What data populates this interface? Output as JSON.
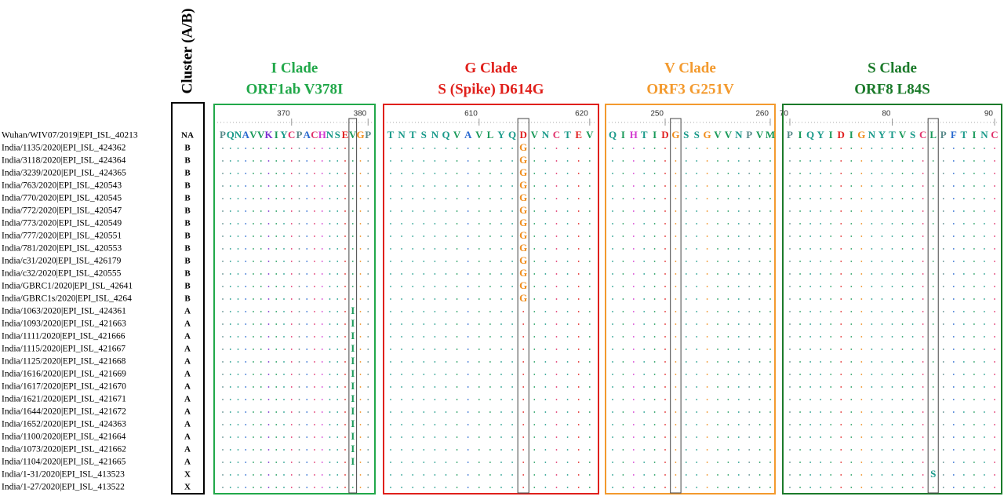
{
  "cluster_header": "Cluster (A/B)",
  "sequences": [
    {
      "name": "Wuhan/WIV07/2019|EPI_ISL_40213",
      "cluster": "NA"
    },
    {
      "name": "India/1135/2020|EPI_ISL_424362",
      "cluster": "B"
    },
    {
      "name": "India/3118/2020|EPI_ISL_424364",
      "cluster": "B"
    },
    {
      "name": "India/3239/2020|EPI_ISL_424365",
      "cluster": "B"
    },
    {
      "name": "India/763/2020|EPI_ISL_420543",
      "cluster": "B"
    },
    {
      "name": "India/770/2020|EPI_ISL_420545",
      "cluster": "B"
    },
    {
      "name": "India/772/2020|EPI_ISL_420547",
      "cluster": "B"
    },
    {
      "name": "India/773/2020|EPI_ISL_420549",
      "cluster": "B"
    },
    {
      "name": "India/777/2020|EPI_ISL_420551",
      "cluster": "B"
    },
    {
      "name": "India/781/2020|EPI_ISL_420553",
      "cluster": "B"
    },
    {
      "name": "India/c31/2020|EPI_ISL_426179",
      "cluster": "B"
    },
    {
      "name": "India/c32/2020|EPI_ISL_420555",
      "cluster": "B"
    },
    {
      "name": "India/GBRC1/2020|EPI_ISL_42641",
      "cluster": "B"
    },
    {
      "name": "India/GBRC1s/2020|EPI_ISL_4264",
      "cluster": "B"
    },
    {
      "name": "India/1063/2020|EPI_ISL_424361",
      "cluster": "A"
    },
    {
      "name": "India/1093/2020|EPI_ISL_421663",
      "cluster": "A"
    },
    {
      "name": "India/1111/2020|EPI_ISL_421666",
      "cluster": "A"
    },
    {
      "name": "India/1115/2020|EPI_ISL_421667",
      "cluster": "A"
    },
    {
      "name": "India/1125/2020|EPI_ISL_421668",
      "cluster": "A"
    },
    {
      "name": "India/1616/2020|EPI_ISL_421669",
      "cluster": "A"
    },
    {
      "name": "India/1617/2020|EPI_ISL_421670",
      "cluster": "A"
    },
    {
      "name": "India/1621/2020|EPI_ISL_421671",
      "cluster": "A"
    },
    {
      "name": "India/1644/2020|EPI_ISL_421672",
      "cluster": "A"
    },
    {
      "name": "India/1652/2020|EPI_ISL_424363",
      "cluster": "A"
    },
    {
      "name": "India/1100/2020|EPI_ISL_421664",
      "cluster": "A"
    },
    {
      "name": "India/1073/2020|EPI_ISL_421662",
      "cluster": "A"
    },
    {
      "name": "India/1104/2020|EPI_ISL_421665",
      "cluster": "A"
    },
    {
      "name": "India/1-31/2020|EPI_ISL_413523",
      "cluster": "X"
    },
    {
      "name": "India/1-27/2020|EPI_ISL_413522",
      "cluster": "X"
    }
  ],
  "panels": [
    {
      "title": "I Clade",
      "subtitle": "ORF1ab V378I",
      "color": "#22a84a",
      "start": 361,
      "site": 378,
      "ticks": [
        370,
        380
      ],
      "reference": "PQNAVVKIYCPACHNSEVGP",
      "variants": [
        null,
        null,
        null,
        null,
        null,
        null,
        null,
        null,
        null,
        null,
        null,
        null,
        null,
        null,
        "I",
        "I",
        "I",
        "I",
        "I",
        "I",
        "I",
        "I",
        "I",
        "I",
        "I",
        "I",
        "I",
        null,
        null
      ]
    },
    {
      "title": "G Clade",
      "subtitle": "S (Spike) D614G",
      "color": "#e0201b",
      "start": 602,
      "site": 614,
      "ticks": [
        610,
        620
      ],
      "reference": "TNTSNQVAVLYQDVNCTEV",
      "variants": [
        null,
        "G",
        "G",
        "G",
        "G",
        "G",
        "G",
        "G",
        "G",
        "G",
        "G",
        "G",
        "G",
        "G",
        null,
        null,
        null,
        null,
        null,
        null,
        null,
        null,
        null,
        null,
        null,
        null,
        null,
        null,
        null
      ]
    },
    {
      "title": "V Clade",
      "subtitle": "ORF3 G251V",
      "color": "#f39a2e",
      "start": 245,
      "site": 251,
      "ticks": [
        250,
        260
      ],
      "reference": "QIHTIDGSSGVVNPVM",
      "variants": [
        null,
        null,
        null,
        null,
        null,
        null,
        null,
        null,
        null,
        null,
        null,
        null,
        null,
        null,
        null,
        null,
        null,
        null,
        null,
        null,
        null,
        null,
        null,
        null,
        null,
        null,
        null,
        null,
        null
      ]
    },
    {
      "title": "S Clade",
      "subtitle": "ORF8 L84S",
      "color": "#1b7a2a",
      "start": 70,
      "site": 84,
      "ticks": [
        70,
        80,
        90
      ],
      "reference": "PIQYIDIGNYTVSCLPFTINC",
      "variants": [
        null,
        null,
        null,
        null,
        null,
        null,
        null,
        null,
        null,
        null,
        null,
        null,
        null,
        null,
        null,
        null,
        null,
        null,
        null,
        null,
        null,
        null,
        null,
        null,
        null,
        null,
        null,
        "S",
        null
      ]
    }
  ]
}
